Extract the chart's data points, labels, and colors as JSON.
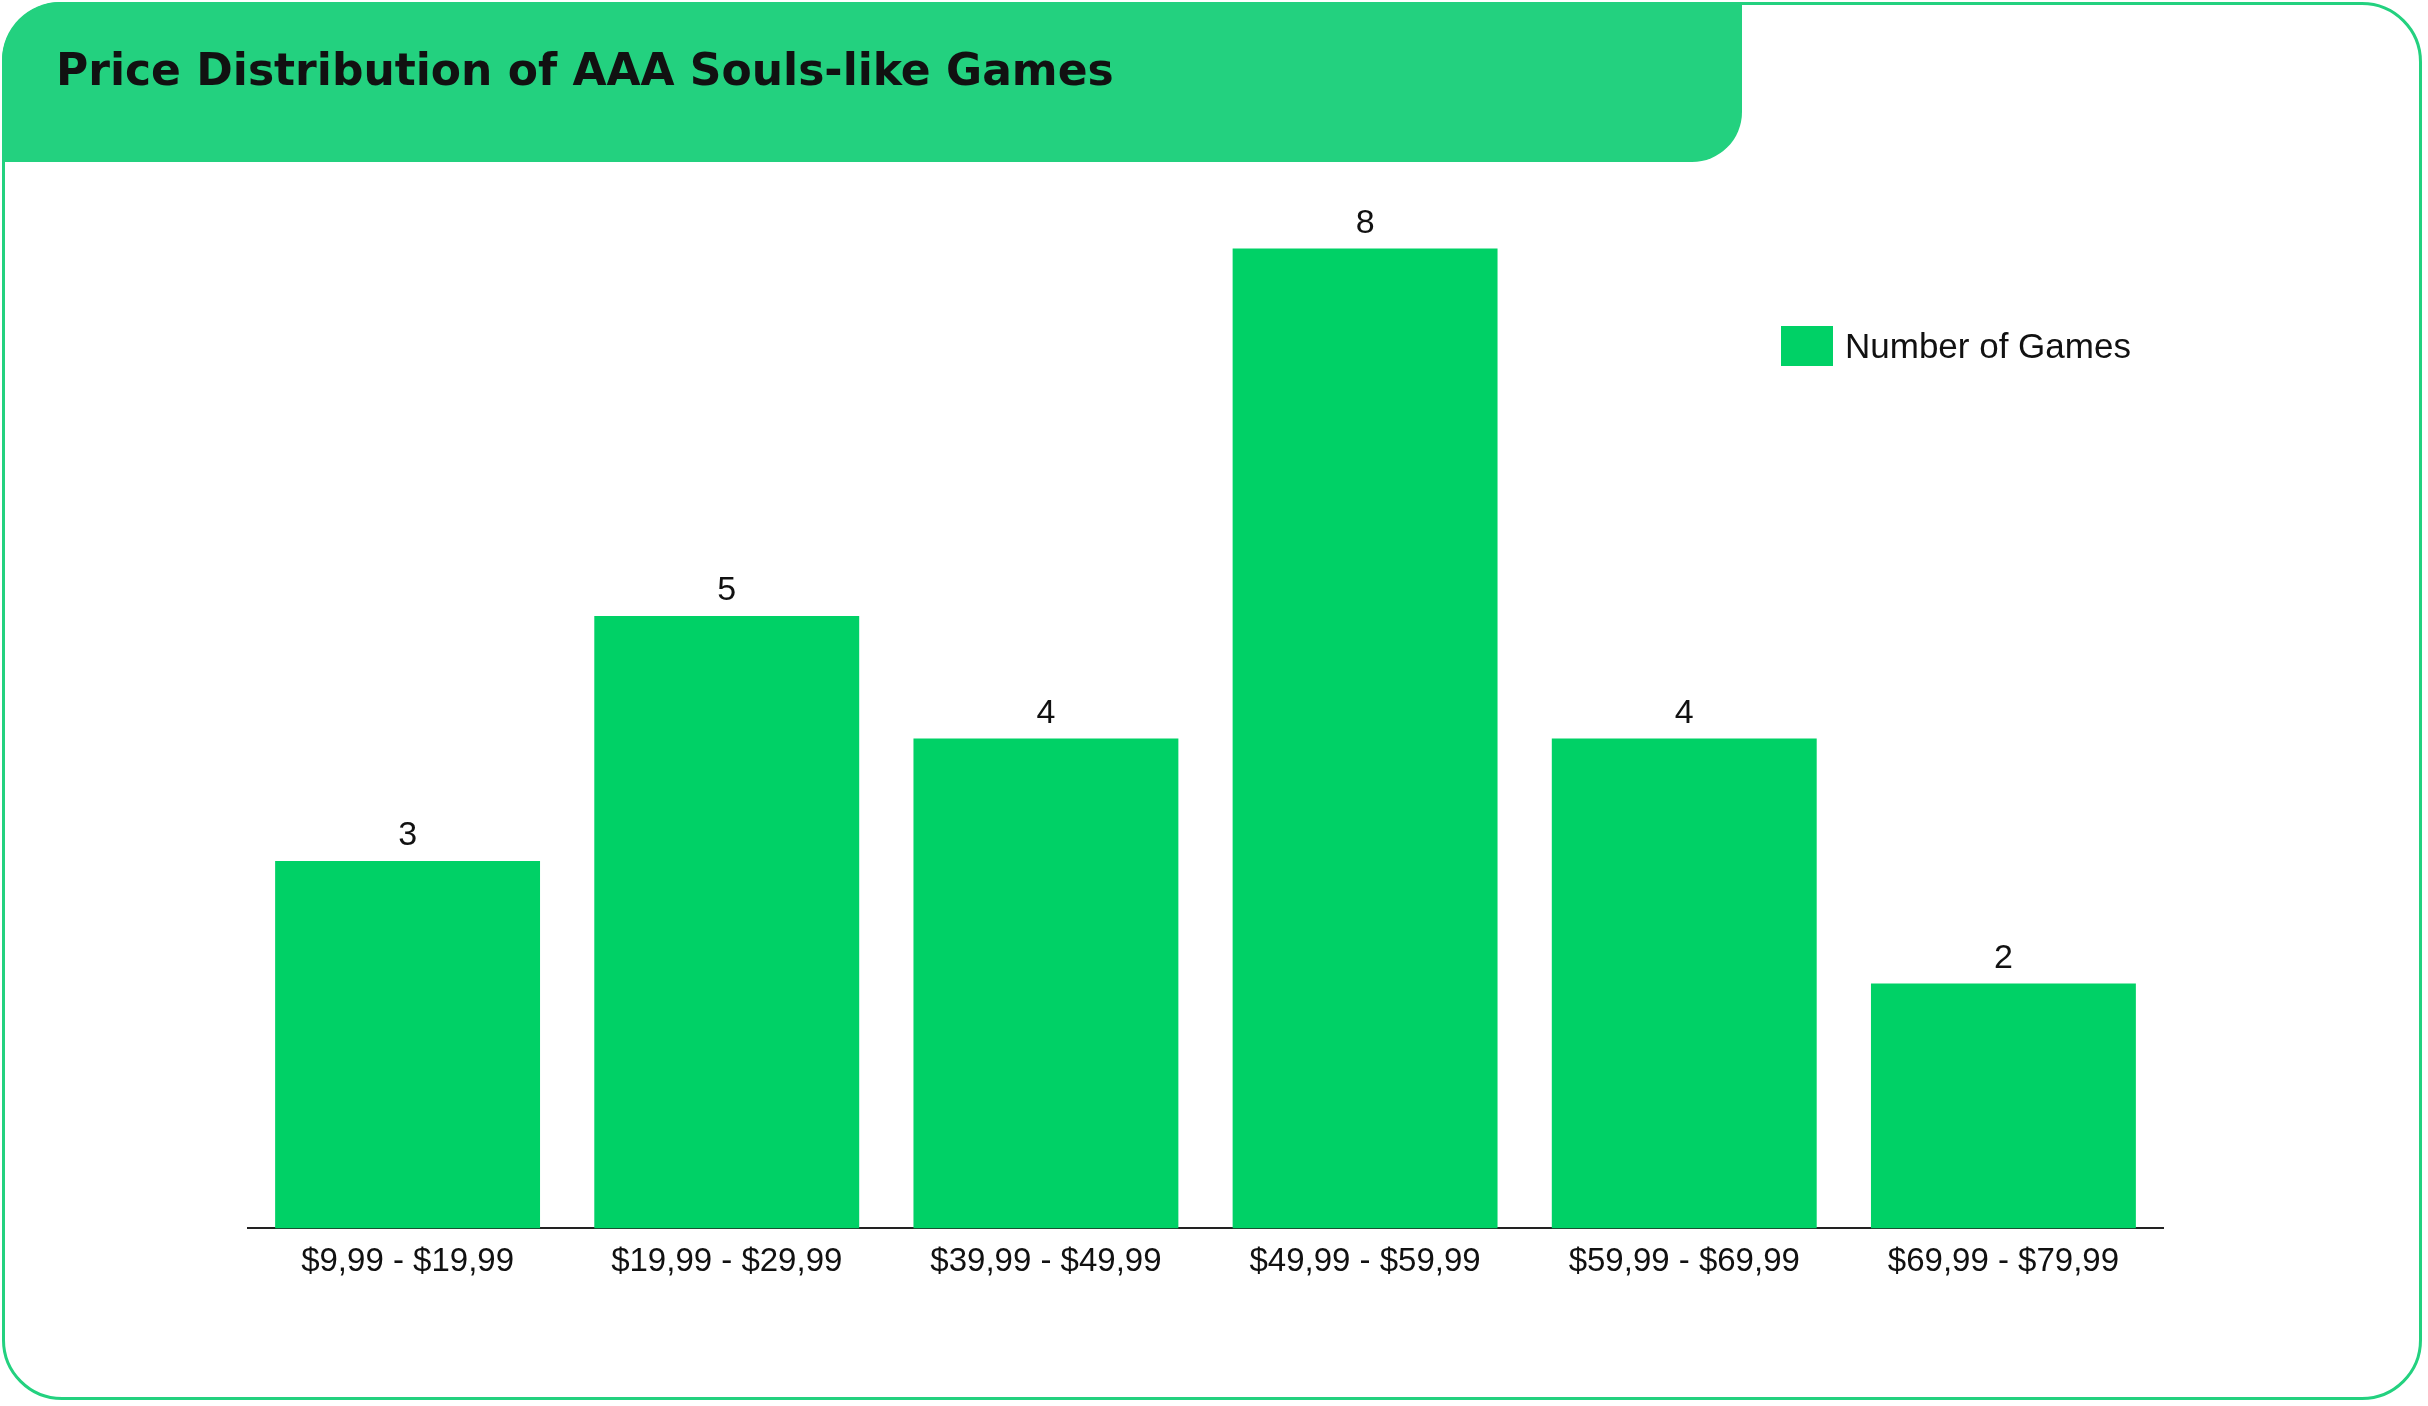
{
  "chart_data": {
    "type": "bar",
    "title": "Price Distribution of AAA Souls-like Games",
    "categories": [
      "$9,99 - $19,99",
      "$19,99 - $29,99",
      "$39,99 - $49,99",
      "$49,99 - $59,99",
      "$59,99 - $69,99",
      "$69,99 - $79,99"
    ],
    "series": [
      {
        "name": "Number of Games",
        "color": "#00d166",
        "values": [
          3,
          5,
          4,
          8,
          4,
          2
        ]
      }
    ],
    "data_labels": true,
    "grid": false,
    "legend": "top right"
  }
}
